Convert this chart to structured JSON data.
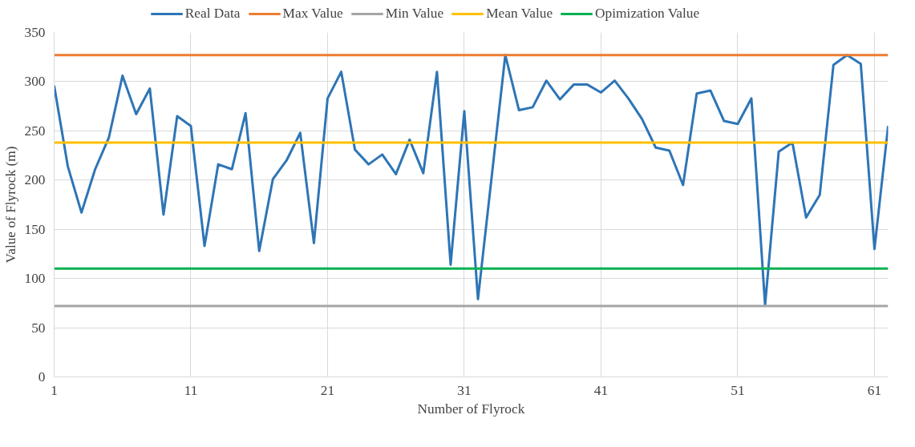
{
  "chart_data": {
    "type": "line",
    "xlabel": "Number of Flyrock",
    "ylabel": "Value of Flyrock (m)",
    "x": [
      1,
      2,
      3,
      4,
      5,
      6,
      7,
      8,
      9,
      10,
      11,
      12,
      13,
      14,
      15,
      16,
      17,
      18,
      19,
      20,
      21,
      22,
      23,
      24,
      25,
      26,
      27,
      28,
      29,
      30,
      31,
      32,
      33,
      34,
      35,
      36,
      37,
      38,
      39,
      40,
      41,
      42,
      43,
      44,
      45,
      46,
      47,
      48,
      49,
      50,
      51,
      52,
      53,
      54,
      55,
      56,
      57,
      58,
      59,
      60,
      61,
      62
    ],
    "series": [
      {
        "name": "Real Data",
        "color": "#2e75b6",
        "values": [
          296,
          214,
          167,
          211,
          243,
          306,
          267,
          293,
          165,
          265,
          255,
          133,
          216,
          211,
          268,
          128,
          201,
          220,
          248,
          136,
          283,
          310,
          231,
          216,
          226,
          206,
          241,
          207,
          310,
          114,
          270,
          79,
          203,
          327,
          271,
          274,
          301,
          282,
          297,
          297,
          289,
          301,
          283,
          262,
          233,
          230,
          195,
          288,
          291,
          260,
          257,
          283,
          73,
          229,
          238,
          162,
          185,
          317,
          327,
          318,
          130,
          255
        ]
      }
    ],
    "ref_lines": [
      {
        "axis": "y",
        "value": 327,
        "label": "Max Value",
        "color": "#ed7d31"
      },
      {
        "axis": "y",
        "value": 72,
        "label": "Min Value",
        "color": "#a5a5a5"
      },
      {
        "axis": "y",
        "value": 238,
        "label": "Mean Value",
        "color": "#ffc000"
      },
      {
        "axis": "y",
        "value": 110,
        "label": "Opimization Value",
        "color": "#00b050"
      }
    ],
    "xlim": [
      1,
      62
    ],
    "xticks": [
      1,
      11,
      21,
      31,
      41,
      51,
      61
    ],
    "ylim": [
      0,
      350
    ],
    "yticks": [
      0,
      50,
      100,
      150,
      200,
      250,
      300,
      350
    ],
    "grid": true,
    "legend": "top",
    "marker": "none",
    "line_style": "solid"
  }
}
